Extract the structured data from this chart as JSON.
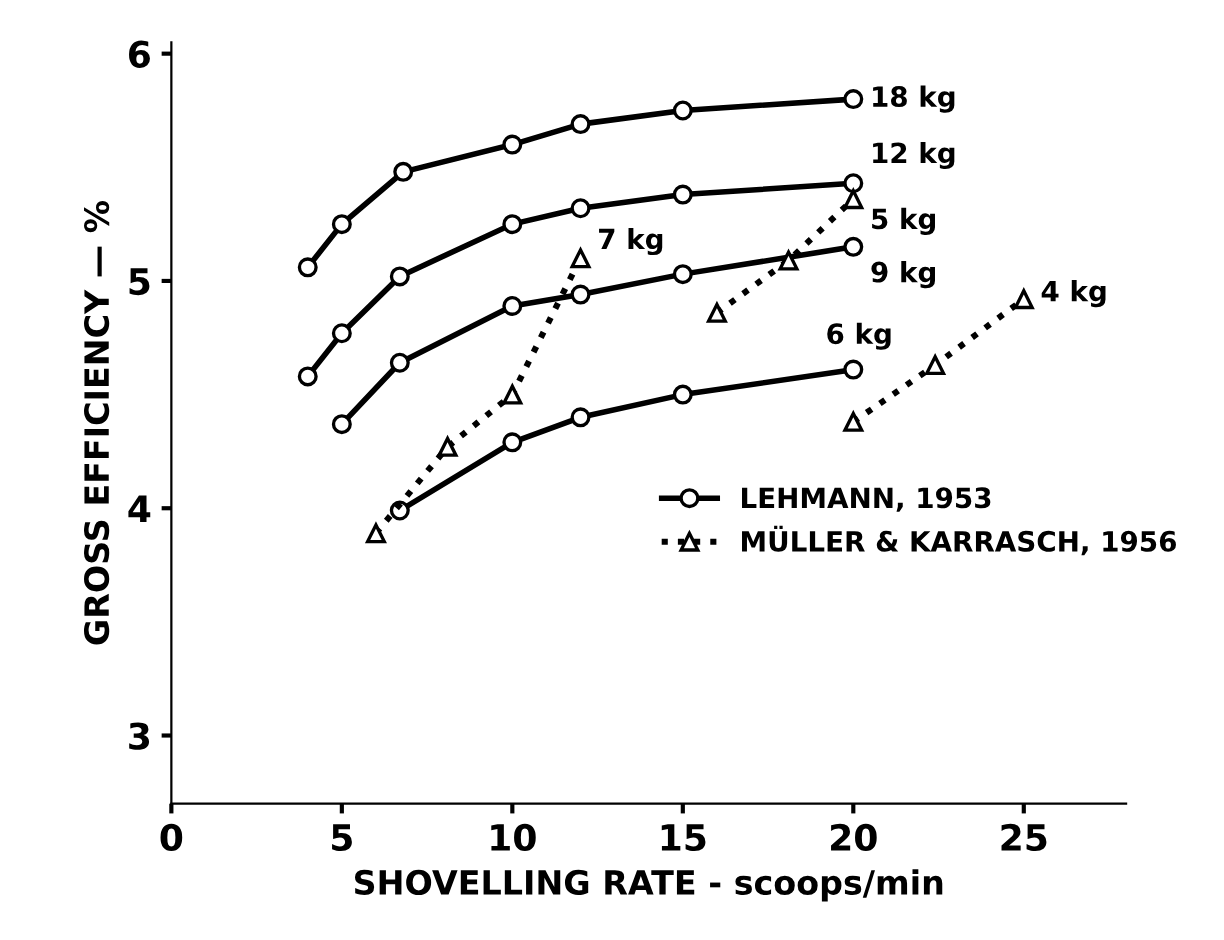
{
  "chart_data": {
    "type": "line",
    "xlabel": "SHOVELLING RATE - scoops/min",
    "ylabel": "GROSS EFFICIENCY — %",
    "xlim": [
      0,
      28
    ],
    "ylim": [
      2.7,
      6.05
    ],
    "xticks": [
      0,
      5,
      10,
      15,
      20,
      25
    ],
    "yticks": [
      3,
      4,
      5,
      6
    ],
    "grid": false,
    "legend": "center right",
    "series": [
      {
        "name": "LEHMANN, 1953",
        "color": "#000000",
        "marker": "circle",
        "line_style": "solid",
        "x": [
          4,
          5,
          6.8,
          10,
          12,
          15,
          20,
          null,
          4,
          5,
          6.7,
          10,
          12,
          15,
          20,
          null,
          5,
          6.7,
          10,
          12,
          15,
          20,
          null,
          6.7,
          10,
          12,
          15,
          20
        ],
        "values": [
          5.06,
          5.25,
          5.48,
          5.6,
          5.69,
          5.75,
          5.8,
          null,
          4.58,
          4.77,
          5.02,
          5.25,
          5.32,
          5.38,
          5.43,
          null,
          4.37,
          4.64,
          4.89,
          4.94,
          5.03,
          5.15,
          null,
          3.99,
          4.29,
          4.4,
          4.5,
          4.61
        ]
      },
      {
        "name": "MÜLLER & KARRASCH, 1956",
        "color": "#000000",
        "marker": "triangle",
        "line_style": "dotted",
        "x": [
          6,
          8.1,
          10,
          12,
          null,
          16,
          18.1,
          20,
          null,
          20,
          22.4,
          25
        ],
        "values": [
          3.89,
          4.27,
          4.5,
          5.1,
          null,
          4.86,
          5.09,
          5.36,
          null,
          4.38,
          4.63,
          4.92
        ]
      }
    ],
    "annotations": [
      {
        "text": "18 kg",
        "x": 20,
        "y": 5.8
      },
      {
        "text": "12 kg",
        "x": 20,
        "y": 5.43
      },
      {
        "text": "9 kg",
        "x": 20,
        "y": 5.15
      },
      {
        "text": "6 kg",
        "x": 20,
        "y": 4.61
      },
      {
        "text": "7 kg",
        "x": 12,
        "y": 5.1
      },
      {
        "text": "5 kg",
        "x": 20,
        "y": 5.36
      },
      {
        "text": "4 kg",
        "x": 25,
        "y": 4.92
      }
    ]
  }
}
